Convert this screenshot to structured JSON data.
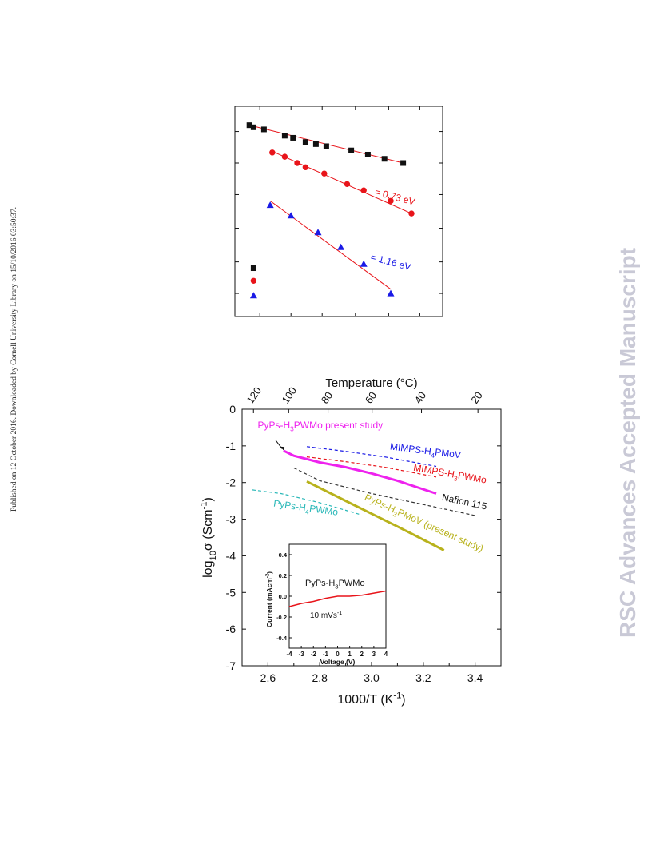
{
  "sidebar_left": {
    "text": "Published on 12 October 2016. Downloaded by Cornell University Library on 15/10/2016 03:50:37."
  },
  "sidebar_right": {
    "text": "RSC Advances Accepted Manuscript"
  },
  "colors": {
    "black": "#111111",
    "red": "#e8141a",
    "blue": "#1a1ae6",
    "magenta": "#ee22ee",
    "olive": "#b8b21c",
    "teal": "#2ab8b8",
    "fit_line": "#e8141a",
    "dark": "#333333"
  },
  "chart_data": [
    {
      "type": "scatter",
      "title": "",
      "xlabel": "",
      "ylabel": "",
      "xlim": [
        0,
        100
      ],
      "ylim": [
        0,
        100
      ],
      "series": [
        {
          "color": "#111111",
          "marker": "square",
          "points": [
            [
              7,
              91
            ],
            [
              9,
              90
            ],
            [
              14,
              89
            ],
            [
              24,
              86
            ],
            [
              28,
              85
            ],
            [
              34,
              83
            ],
            [
              39,
              82
            ],
            [
              44,
              81
            ],
            [
              56,
              79
            ],
            [
              64,
              77
            ],
            [
              72,
              75
            ],
            [
              81,
              73
            ]
          ],
          "fit": [
            [
              7,
              91
            ],
            [
              81,
              73
            ]
          ]
        },
        {
          "color": "#e8141a",
          "marker": "circle",
          "points": [
            [
              18,
              78
            ],
            [
              24,
              76
            ],
            [
              30,
              73
            ],
            [
              34,
              71
            ],
            [
              43,
              68
            ],
            [
              54,
              63
            ],
            [
              62,
              60
            ],
            [
              75,
              55
            ],
            [
              85,
              49
            ]
          ],
          "fit": [
            [
              17,
              79
            ],
            [
              85,
              49
            ]
          ]
        },
        {
          "color": "#1a1ae6",
          "marker": "triangle",
          "points": [
            [
              17,
              53
            ],
            [
              27,
              48
            ],
            [
              40,
              40
            ],
            [
              51,
              33
            ],
            [
              62,
              25
            ],
            [
              75,
              11
            ]
          ],
          "fit": [
            [
              17,
              55
            ],
            [
              75,
              13
            ]
          ]
        }
      ],
      "legend_markers": [
        {
          "color": "#111111",
          "marker": "square",
          "point": [
            9,
            23
          ]
        },
        {
          "color": "#e8141a",
          "marker": "circle",
          "point": [
            9,
            17
          ]
        },
        {
          "color": "#1a1ae6",
          "marker": "triangle",
          "point": [
            9,
            10
          ]
        }
      ],
      "annotations": [
        {
          "text": "= 0.73 eV",
          "color": "#e8141a",
          "at": [
            67,
            58
          ],
          "rotate": 15
        },
        {
          "text": "= 1.16 eV",
          "color": "#1a1ae6",
          "at": [
            65,
            27
          ],
          "rotate": 15
        }
      ]
    },
    {
      "type": "line",
      "title": "",
      "xlabel": "1000/T (K",
      "xlabel_sup": "-1",
      "xlabel_end": ")",
      "ylabel_main": "log",
      "ylabel_sub": "10",
      "ylabel_greek": "σ (Scm",
      "ylabel_sup": "-1",
      "ylabel_end": ")",
      "top_axis_label": "Temperature (°C)",
      "xlim": [
        2.5,
        3.5
      ],
      "ylim": [
        -7,
        0
      ],
      "xticks": [
        2.6,
        2.8,
        3.0,
        3.2,
        3.4
      ],
      "xtick_labels": [
        "2.6",
        "2.8",
        "3.0",
        "3.2",
        "3.4"
      ],
      "yticks": [
        0,
        -1,
        -2,
        -3,
        -4,
        -5,
        -6,
        -7
      ],
      "ytick_labels": [
        "0",
        "-1",
        "-2",
        "-3",
        "-4",
        "-5",
        "-6",
        "-7"
      ],
      "top_ticks": [
        {
          "label": "120",
          "x": 2.544
        },
        {
          "label": "100",
          "x": 2.68
        },
        {
          "label": "80",
          "x": 2.832
        },
        {
          "label": "60",
          "x": 3.002
        },
        {
          "label": "40",
          "x": 3.193
        },
        {
          "label": "20",
          "x": 3.411
        }
      ],
      "series": [
        {
          "name": "PyPs-H3PWMo present study",
          "color": "#ee22ee",
          "style": "solid",
          "width": 3,
          "points": [
            [
              2.66,
              -1.13
            ],
            [
              2.7,
              -1.27
            ],
            [
              2.8,
              -1.45
            ],
            [
              2.9,
              -1.58
            ],
            [
              3.0,
              -1.75
            ],
            [
              3.1,
              -1.95
            ],
            [
              3.25,
              -2.3
            ]
          ]
        },
        {
          "name": "MIMPS-H4PMoV",
          "color": "#1a1ae6",
          "style": "dashed",
          "width": 1.2,
          "points": [
            [
              2.75,
              -1.02
            ],
            [
              2.9,
              -1.15
            ],
            [
              3.05,
              -1.3
            ],
            [
              3.25,
              -1.56
            ]
          ]
        },
        {
          "name": "MIMPS-H3PWMo",
          "color": "#e8141a",
          "style": "dashed",
          "width": 1.2,
          "points": [
            [
              2.75,
              -1.3
            ],
            [
              2.9,
              -1.43
            ],
            [
              3.05,
              -1.58
            ],
            [
              3.25,
              -1.85
            ]
          ]
        },
        {
          "name": "Nafion 115",
          "color": "#333333",
          "style": "dashed",
          "width": 1.2,
          "points": [
            [
              2.7,
              -1.6
            ],
            [
              2.8,
              -1.95
            ],
            [
              3.0,
              -2.3
            ],
            [
              3.2,
              -2.6
            ],
            [
              3.4,
              -2.9
            ]
          ]
        },
        {
          "name": "PyPs-H3PMoV (present study)",
          "color": "#b8b21c",
          "style": "solid",
          "width": 3,
          "points": [
            [
              2.75,
              -1.97
            ],
            [
              2.9,
              -2.5
            ],
            [
              3.0,
              -2.85
            ],
            [
              3.1,
              -3.2
            ],
            [
              3.28,
              -3.85
            ]
          ]
        },
        {
          "name": "PyPs-H4PWMo",
          "color": "#2ab8b8",
          "style": "dashed",
          "width": 1.2,
          "points": [
            [
              2.54,
              -2.2
            ],
            [
              2.65,
              -2.3
            ],
            [
              2.8,
              -2.55
            ],
            [
              2.96,
              -2.88
            ]
          ]
        }
      ],
      "series_labels": [
        {
          "parts": [
            [
              "PyPs-H",
              ""
            ],
            [
              "3",
              "sub"
            ],
            [
              "PWMo present study",
              ""
            ]
          ],
          "color": "#ee22ee",
          "at": [
            2.56,
            -0.52
          ],
          "rotate": 0
        },
        {
          "parts": [
            [
              "MIMPS-H",
              ""
            ],
            [
              "4",
              "sub"
            ],
            [
              "PMoV",
              ""
            ]
          ],
          "color": "#1a1ae6",
          "at": [
            3.07,
            -1.1
          ],
          "rotate": 7
        },
        {
          "parts": [
            [
              "MIMPS-H",
              ""
            ],
            [
              "3",
              "sub"
            ],
            [
              "PWMo",
              ""
            ]
          ],
          "color": "#e8141a",
          "at": [
            3.16,
            -1.67
          ],
          "rotate": 10
        },
        {
          "parts": [
            [
              "Nafion 115",
              ""
            ]
          ],
          "color": "#111111",
          "at": [
            3.27,
            -2.48
          ],
          "rotate": 12
        },
        {
          "parts": [
            [
              "PyPs-H",
              ""
            ],
            [
              "3",
              "sub"
            ],
            [
              "PMoV (present study)",
              ""
            ]
          ],
          "color": "#b8b21c",
          "at": [
            2.97,
            -2.47
          ],
          "rotate": 24
        },
        {
          "parts": [
            [
              "PyPs-H",
              ""
            ],
            [
              "4",
              "sub"
            ],
            [
              "PWMo",
              ""
            ]
          ],
          "color": "#2ab8b8",
          "at": [
            2.62,
            -2.65
          ],
          "rotate": 8
        }
      ],
      "inset": {
        "type": "line",
        "title": "PyPs-H3PWMo",
        "title_parts": [
          [
            "PyPs-H",
            ""
          ],
          [
            "3",
            "sub"
          ],
          [
            "PWMo",
            ""
          ]
        ],
        "note_parts": [
          [
            "10 mVs",
            ""
          ],
          [
            "-1",
            "sup"
          ]
        ],
        "xlabel": "Voltage (V)",
        "ylabel_parts": [
          [
            "Current (mAcm",
            ""
          ],
          [
            "-2",
            "sup"
          ],
          [
            ")",
            ""
          ]
        ],
        "xlim": [
          -4,
          4
        ],
        "ylim": [
          -0.5,
          0.5
        ],
        "xticks": [
          -4,
          -3,
          -2,
          -1,
          0,
          1,
          2,
          3,
          4
        ],
        "xtick_labels": [
          "-4",
          "-3",
          "-2",
          "-1",
          "0",
          "1",
          "2",
          "3",
          "4"
        ],
        "yticks": [
          0.4,
          0.2,
          0.0,
          -0.2,
          -0.4
        ],
        "ytick_labels": [
          "0.4",
          "0.2",
          "0.0",
          "-0.2",
          "-0.4"
        ],
        "series": [
          {
            "color": "#e8141a",
            "points": [
              [
                -4,
                -0.1
              ],
              [
                -3,
                -0.07
              ],
              [
                -2,
                -0.05
              ],
              [
                -1,
                -0.02
              ],
              [
                0,
                0.0
              ],
              [
                1,
                0.0
              ],
              [
                2,
                0.01
              ],
              [
                3,
                0.03
              ],
              [
                4,
                0.05
              ]
            ]
          }
        ]
      }
    }
  ]
}
